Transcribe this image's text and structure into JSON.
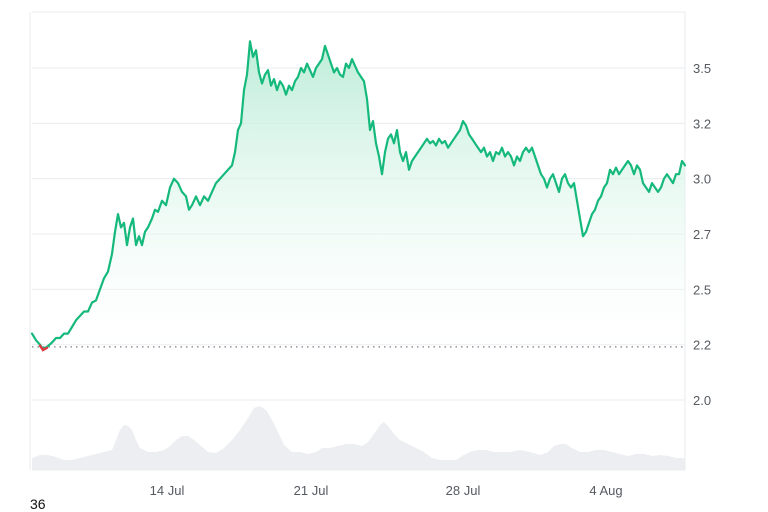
{
  "corner_label": "36",
  "colors": {
    "line": "#16b97c",
    "fill_top": "#b9ecd6",
    "fill_bottom": "#ffffff",
    "volume": "#eceef1",
    "grid": "#e9ebee",
    "baseline_dot": "#7a7f86",
    "start_marker": "#e0383e",
    "axis_text": "#555a60"
  },
  "chart_data": {
    "type": "area",
    "title": "",
    "xlabel": "",
    "ylabel": "",
    "x_tick_labels": [
      "14 Jul",
      "21 Jul",
      "28 Jul",
      "4 Aug"
    ],
    "y_tick_labels": [
      "3.5",
      "3.2",
      "3.0",
      "2.7",
      "2.5",
      "2.2",
      "2.0"
    ],
    "y_tick_values": [
      3.5,
      3.25,
      3.0,
      2.75,
      2.5,
      2.25,
      2.0
    ],
    "ylim": [
      1.7,
      3.65
    ],
    "grid": true,
    "legend": null,
    "baseline_value": 2.24,
    "series": [
      {
        "name": "price",
        "date_range": [
          "~8 Jul",
          "~9 Aug"
        ],
        "points": [
          [
            32,
            2.3
          ],
          [
            36,
            2.27
          ],
          [
            40,
            2.25
          ],
          [
            43,
            2.23
          ],
          [
            47,
            2.24
          ],
          [
            52,
            2.26
          ],
          [
            56,
            2.28
          ],
          [
            60,
            2.28
          ],
          [
            64,
            2.3
          ],
          [
            68,
            2.3
          ],
          [
            72,
            2.33
          ],
          [
            76,
            2.36
          ],
          [
            80,
            2.38
          ],
          [
            84,
            2.4
          ],
          [
            88,
            2.4
          ],
          [
            92,
            2.44
          ],
          [
            96,
            2.45
          ],
          [
            100,
            2.5
          ],
          [
            104,
            2.55
          ],
          [
            108,
            2.58
          ],
          [
            112,
            2.66
          ],
          [
            115,
            2.76
          ],
          [
            118,
            2.84
          ],
          [
            121,
            2.78
          ],
          [
            124,
            2.8
          ],
          [
            127,
            2.7
          ],
          [
            130,
            2.78
          ],
          [
            133,
            2.82
          ],
          [
            136,
            2.7
          ],
          [
            139,
            2.74
          ],
          [
            142,
            2.7
          ],
          [
            145,
            2.76
          ],
          [
            148,
            2.78
          ],
          [
            152,
            2.82
          ],
          [
            155,
            2.86
          ],
          [
            158,
            2.85
          ],
          [
            162,
            2.9
          ],
          [
            166,
            2.88
          ],
          [
            170,
            2.96
          ],
          [
            174,
            3.0
          ],
          [
            178,
            2.98
          ],
          [
            182,
            2.94
          ],
          [
            186,
            2.92
          ],
          [
            189,
            2.86
          ],
          [
            192,
            2.88
          ],
          [
            196,
            2.92
          ],
          [
            200,
            2.88
          ],
          [
            204,
            2.92
          ],
          [
            208,
            2.9
          ],
          [
            212,
            2.94
          ],
          [
            216,
            2.98
          ],
          [
            220,
            3.0
          ],
          [
            224,
            3.02
          ],
          [
            228,
            3.04
          ],
          [
            232,
            3.06
          ],
          [
            235,
            3.12
          ],
          [
            238,
            3.22
          ],
          [
            241,
            3.25
          ],
          [
            244,
            3.4
          ],
          [
            247,
            3.47
          ],
          [
            250,
            3.62
          ],
          [
            253,
            3.55
          ],
          [
            256,
            3.58
          ],
          [
            259,
            3.48
          ],
          [
            262,
            3.43
          ],
          [
            265,
            3.47
          ],
          [
            268,
            3.49
          ],
          [
            271,
            3.42
          ],
          [
            274,
            3.45
          ],
          [
            277,
            3.4
          ],
          [
            280,
            3.44
          ],
          [
            283,
            3.42
          ],
          [
            286,
            3.38
          ],
          [
            289,
            3.42
          ],
          [
            292,
            3.4
          ],
          [
            295,
            3.44
          ],
          [
            298,
            3.46
          ],
          [
            301,
            3.5
          ],
          [
            304,
            3.48
          ],
          [
            307,
            3.52
          ],
          [
            310,
            3.49
          ],
          [
            313,
            3.46
          ],
          [
            316,
            3.5
          ],
          [
            319,
            3.52
          ],
          [
            322,
            3.54
          ],
          [
            325,
            3.6
          ],
          [
            328,
            3.56
          ],
          [
            331,
            3.52
          ],
          [
            334,
            3.48
          ],
          [
            337,
            3.5
          ],
          [
            340,
            3.47
          ],
          [
            343,
            3.46
          ],
          [
            346,
            3.52
          ],
          [
            349,
            3.5
          ],
          [
            352,
            3.54
          ],
          [
            355,
            3.51
          ],
          [
            358,
            3.48
          ],
          [
            361,
            3.46
          ],
          [
            364,
            3.44
          ],
          [
            367,
            3.36
          ],
          [
            370,
            3.22
          ],
          [
            373,
            3.26
          ],
          [
            376,
            3.16
          ],
          [
            379,
            3.1
          ],
          [
            382,
            3.02
          ],
          [
            385,
            3.12
          ],
          [
            388,
            3.18
          ],
          [
            391,
            3.2
          ],
          [
            394,
            3.16
          ],
          [
            397,
            3.22
          ],
          [
            400,
            3.12
          ],
          [
            403,
            3.08
          ],
          [
            406,
            3.12
          ],
          [
            409,
            3.04
          ],
          [
            412,
            3.08
          ],
          [
            415,
            3.1
          ],
          [
            418,
            3.12
          ],
          [
            421,
            3.14
          ],
          [
            424,
            3.16
          ],
          [
            427,
            3.18
          ],
          [
            430,
            3.16
          ],
          [
            433,
            3.17
          ],
          [
            436,
            3.15
          ],
          [
            439,
            3.18
          ],
          [
            442,
            3.16
          ],
          [
            445,
            3.17
          ],
          [
            448,
            3.14
          ],
          [
            451,
            3.16
          ],
          [
            454,
            3.18
          ],
          [
            457,
            3.2
          ],
          [
            460,
            3.22
          ],
          [
            463,
            3.26
          ],
          [
            466,
            3.24
          ],
          [
            469,
            3.2
          ],
          [
            472,
            3.18
          ],
          [
            475,
            3.16
          ],
          [
            478,
            3.14
          ],
          [
            481,
            3.12
          ],
          [
            484,
            3.14
          ],
          [
            487,
            3.1
          ],
          [
            490,
            3.12
          ],
          [
            493,
            3.08
          ],
          [
            496,
            3.12
          ],
          [
            499,
            3.11
          ],
          [
            502,
            3.14
          ],
          [
            505,
            3.1
          ],
          [
            508,
            3.12
          ],
          [
            511,
            3.1
          ],
          [
            514,
            3.06
          ],
          [
            517,
            3.1
          ],
          [
            520,
            3.08
          ],
          [
            523,
            3.12
          ],
          [
            526,
            3.14
          ],
          [
            529,
            3.12
          ],
          [
            532,
            3.14
          ],
          [
            535,
            3.1
          ],
          [
            538,
            3.06
          ],
          [
            541,
            3.02
          ],
          [
            544,
            3.0
          ],
          [
            547,
            2.96
          ],
          [
            550,
            3.0
          ],
          [
            553,
            3.02
          ],
          [
            556,
            2.98
          ],
          [
            559,
            2.94
          ],
          [
            562,
            3.0
          ],
          [
            565,
            3.02
          ],
          [
            568,
            2.98
          ],
          [
            571,
            2.96
          ],
          [
            574,
            2.98
          ],
          [
            577,
            2.9
          ],
          [
            580,
            2.82
          ],
          [
            583,
            2.74
          ],
          [
            586,
            2.76
          ],
          [
            589,
            2.8
          ],
          [
            592,
            2.84
          ],
          [
            595,
            2.86
          ],
          [
            598,
            2.9
          ],
          [
            601,
            2.92
          ],
          [
            604,
            2.96
          ],
          [
            607,
            2.98
          ],
          [
            610,
            3.04
          ],
          [
            613,
            3.02
          ],
          [
            616,
            3.05
          ],
          [
            619,
            3.02
          ],
          [
            622,
            3.04
          ],
          [
            625,
            3.06
          ],
          [
            628,
            3.08
          ],
          [
            631,
            3.06
          ],
          [
            634,
            3.02
          ],
          [
            637,
            3.06
          ],
          [
            640,
            3.04
          ],
          [
            643,
            2.98
          ],
          [
            646,
            2.96
          ],
          [
            649,
            2.94
          ],
          [
            652,
            2.98
          ],
          [
            655,
            2.96
          ],
          [
            658,
            2.94
          ],
          [
            661,
            2.96
          ],
          [
            664,
            3.0
          ],
          [
            667,
            3.02
          ],
          [
            670,
            3.0
          ],
          [
            673,
            2.98
          ],
          [
            676,
            3.02
          ],
          [
            679,
            3.02
          ],
          [
            682,
            3.08
          ],
          [
            685,
            3.06
          ]
        ]
      },
      {
        "name": "volume",
        "points": [
          [
            32,
            458
          ],
          [
            40,
            455
          ],
          [
            48,
            455
          ],
          [
            56,
            457
          ],
          [
            64,
            460
          ],
          [
            72,
            460
          ],
          [
            80,
            458
          ],
          [
            88,
            456
          ],
          [
            96,
            454
          ],
          [
            104,
            452
          ],
          [
            112,
            450
          ],
          [
            116,
            440
          ],
          [
            120,
            430
          ],
          [
            124,
            425
          ],
          [
            128,
            426
          ],
          [
            132,
            430
          ],
          [
            136,
            440
          ],
          [
            140,
            448
          ],
          [
            148,
            452
          ],
          [
            156,
            452
          ],
          [
            164,
            450
          ],
          [
            170,
            446
          ],
          [
            176,
            440
          ],
          [
            182,
            436
          ],
          [
            188,
            436
          ],
          [
            194,
            440
          ],
          [
            200,
            445
          ],
          [
            208,
            452
          ],
          [
            216,
            453
          ],
          [
            224,
            448
          ],
          [
            232,
            440
          ],
          [
            240,
            430
          ],
          [
            248,
            418
          ],
          [
            254,
            408
          ],
          [
            260,
            406
          ],
          [
            266,
            410
          ],
          [
            272,
            420
          ],
          [
            278,
            432
          ],
          [
            284,
            445
          ],
          [
            292,
            452
          ],
          [
            300,
            452
          ],
          [
            308,
            454
          ],
          [
            316,
            452
          ],
          [
            322,
            448
          ],
          [
            330,
            448
          ],
          [
            338,
            446
          ],
          [
            346,
            444
          ],
          [
            354,
            444
          ],
          [
            362,
            446
          ],
          [
            368,
            442
          ],
          [
            374,
            434
          ],
          [
            380,
            425
          ],
          [
            384,
            422
          ],
          [
            388,
            426
          ],
          [
            394,
            434
          ],
          [
            400,
            440
          ],
          [
            408,
            444
          ],
          [
            416,
            448
          ],
          [
            424,
            452
          ],
          [
            432,
            458
          ],
          [
            440,
            460
          ],
          [
            448,
            460
          ],
          [
            456,
            460
          ],
          [
            462,
            456
          ],
          [
            470,
            452
          ],
          [
            478,
            450
          ],
          [
            486,
            450
          ],
          [
            494,
            452
          ],
          [
            502,
            452
          ],
          [
            510,
            452
          ],
          [
            520,
            450
          ],
          [
            530,
            452
          ],
          [
            540,
            455
          ],
          [
            548,
            452
          ],
          [
            554,
            446
          ],
          [
            560,
            444
          ],
          [
            566,
            444
          ],
          [
            572,
            448
          ],
          [
            580,
            452
          ],
          [
            588,
            452
          ],
          [
            596,
            450
          ],
          [
            604,
            450
          ],
          [
            612,
            452
          ],
          [
            620,
            454
          ],
          [
            628,
            456
          ],
          [
            636,
            454
          ],
          [
            644,
            454
          ],
          [
            652,
            456
          ],
          [
            660,
            455
          ],
          [
            668,
            456
          ],
          [
            676,
            458
          ],
          [
            685,
            458
          ]
        ]
      }
    ]
  }
}
